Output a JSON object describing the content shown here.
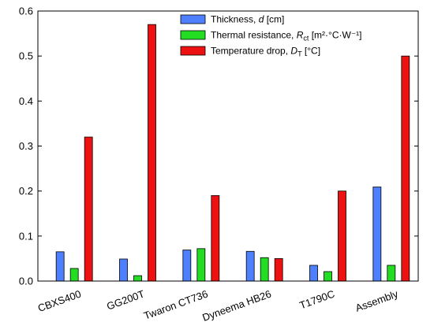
{
  "chart_data": {
    "type": "bar",
    "categories": [
      "CBXS400",
      "GG200T",
      "Twaron CT736",
      "Dyneema HB26",
      "T1790C",
      "Assembly"
    ],
    "ylim": [
      0,
      0.6
    ],
    "yticks": [
      "0.0",
      "0.1",
      "0.2",
      "0.3",
      "0.4",
      "0.5",
      "0.6"
    ],
    "ytick_values": [
      0,
      0.1,
      0.2,
      0.3,
      0.4,
      0.5,
      0.6
    ],
    "legend_position": "top-right",
    "grid": false,
    "series": [
      {
        "name": "Thickness, d [cm]",
        "label_main": "Thickness, ",
        "label_symbol": "d",
        "label_unit": " [cm]",
        "color": "#4d7fff",
        "values": [
          0.065,
          0.049,
          0.069,
          0.066,
          0.035,
          0.209
        ]
      },
      {
        "name": "Thermal resistance, Rct [m²·°C·W⁻¹]",
        "label_main": "Thermal resistance, ",
        "label_symbol": "R",
        "label_sub": "ct",
        "label_unit": " [m²·°C·W⁻¹]",
        "color": "#22dd22",
        "values": [
          0.028,
          0.012,
          0.072,
          0.052,
          0.021,
          0.035
        ]
      },
      {
        "name": "Temperature drop, DT [°C]",
        "label_main": "Temperature drop, ",
        "label_symbol": "D",
        "label_sub": "T",
        "label_unit": " [°C]",
        "color": "#ee1111",
        "values": [
          0.32,
          0.57,
          0.19,
          0.05,
          0.2,
          0.5
        ]
      }
    ]
  }
}
